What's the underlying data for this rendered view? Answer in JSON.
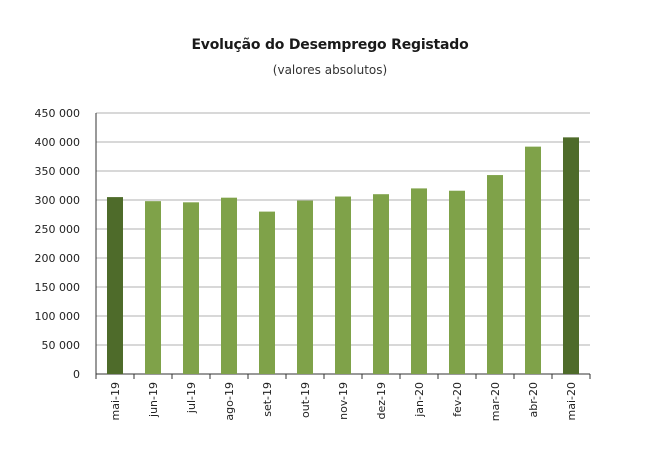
{
  "chart_data": {
    "type": "bar",
    "title": "Evolução do Desemprego Registado",
    "subtitle": "(valores absolutos)",
    "xlabel": "",
    "ylabel": "",
    "ylim": [
      0,
      450000
    ],
    "yticks": [
      0,
      50000,
      100000,
      150000,
      200000,
      250000,
      300000,
      350000,
      400000,
      450000
    ],
    "ytick_labels": [
      "0",
      "50 000",
      "100 000",
      "150 000",
      "200 000",
      "250 000",
      "300 000",
      "350 000",
      "400 000",
      "450 000"
    ],
    "grid": true,
    "categories": [
      "mai-19",
      "jun-19",
      "jul-19",
      "ago-19",
      "set-19",
      "out-19",
      "nov-19",
      "dez-19",
      "jan-20",
      "fev-20",
      "mar-20",
      "abr-20",
      "mai-20"
    ],
    "values": [
      305000,
      298000,
      296000,
      304000,
      280000,
      299000,
      306000,
      310000,
      320000,
      316000,
      343000,
      392000,
      408000
    ],
    "colors": {
      "highlight": "#4e6b2a",
      "normal": "#7fa249",
      "grid": "#b0b0b0",
      "axis": "#333333"
    },
    "highlighted_categories": [
      "mai-19",
      "mai-20"
    ]
  }
}
